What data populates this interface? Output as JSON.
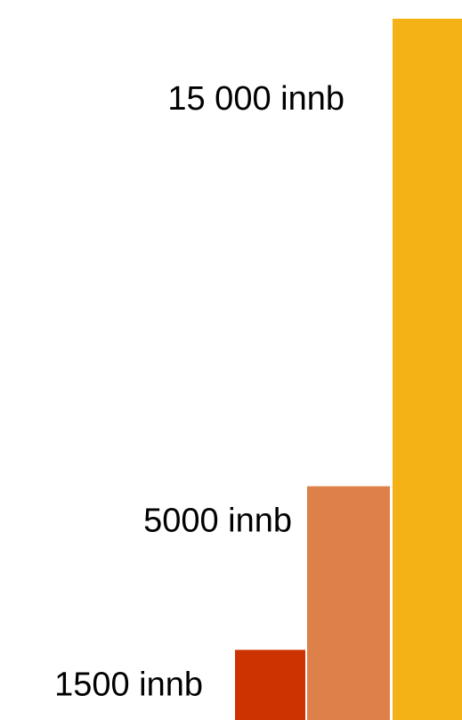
{
  "chart_data": {
    "type": "bar",
    "categories": [
      "1500 innb",
      "5000 innb",
      "15 000 innb"
    ],
    "values": [
      1500,
      5000,
      15000
    ],
    "data_labels": [
      "1500 innb",
      "5000 innb",
      "15 000 innb"
    ],
    "colors": [
      "#CC3300",
      "#DE8049",
      "#F5B217"
    ],
    "ylim": [
      0,
      15400
    ],
    "grid": false,
    "legend": "none",
    "title": "",
    "xlabel": "",
    "ylabel": ""
  }
}
